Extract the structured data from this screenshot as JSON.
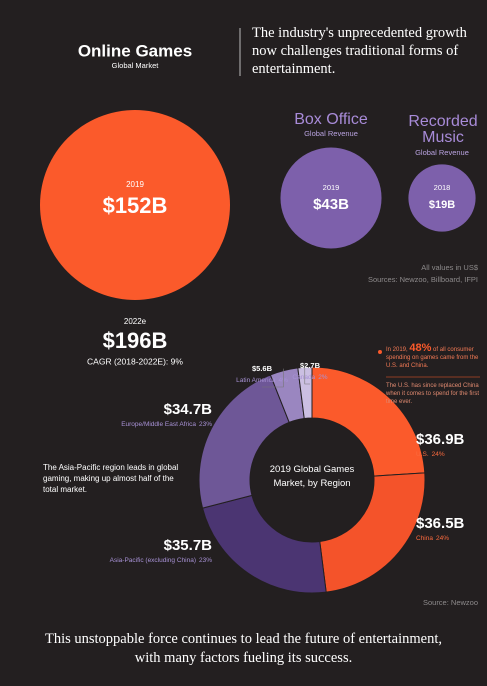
{
  "headline": "The industry's unprecedented growth now challenges traditional forms of entertainment.",
  "footer": "This unstoppable force continues to lead the future of entertainment, with many factors fueling its success.",
  "chart_data": [
    {
      "type": "bubble",
      "categories": [
        "Online Games",
        "Box Office",
        "Recorded Music"
      ],
      "subtitles": [
        "Global Market",
        "Global Revenue",
        "Global Revenue"
      ],
      "years": [
        "2019",
        "2019",
        "2018"
      ],
      "values": [
        152,
        43,
        19
      ],
      "value_labels": [
        "$152B",
        "$43B",
        "$19B"
      ],
      "colors": [
        "#fb5a2b",
        "#7d60ab",
        "#7d60ab"
      ],
      "title_colors": [
        "#ffffff",
        "#a88bd8",
        "#a88bd8"
      ],
      "projection": {
        "year": "2022e",
        "value": 196,
        "value_label": "$196B",
        "note": "CAGR (2018-2022E): 9%"
      },
      "notes": [
        "All values in US$",
        "Sources: Newzoo, Billboard, IFPI"
      ]
    },
    {
      "type": "donut",
      "title": "2019 Global Games Market, by Region",
      "categories": [
        "U.S.",
        "China",
        "Asia-Pacific (excluding China)",
        "Europe/Middle East Africa",
        "Latin America",
        "Canada"
      ],
      "values": [
        24,
        24,
        23,
        23,
        4,
        2
      ],
      "value_labels": [
        "24%",
        "24%",
        "23%",
        "23%",
        "4%",
        "2%"
      ],
      "amounts": [
        36.9,
        36.5,
        35.7,
        34.7,
        5.6,
        2.7
      ],
      "amount_labels": [
        "$36.9B",
        "$36.5B",
        "$35.7B",
        "$34.7B",
        "$5.6B",
        "$2.7B"
      ],
      "colors": [
        "#fb5a2b",
        "#f4532a",
        "#4b3572",
        "#6e5797",
        "#9a86c0",
        "#cbbfe2"
      ],
      "annotations": [
        {
          "parts": [
            "In 2019, ",
            "48%",
            " of all consumer spending on games came from the U.S. and China."
          ]
        },
        {
          "parts": [
            "The U.S. has since replaced China when it comes to spend for the first time ever."
          ]
        }
      ],
      "note": "The Asia-Pacific region leads in global gaming, making up almost half of the total market.",
      "source": "Source: Newzoo"
    }
  ]
}
